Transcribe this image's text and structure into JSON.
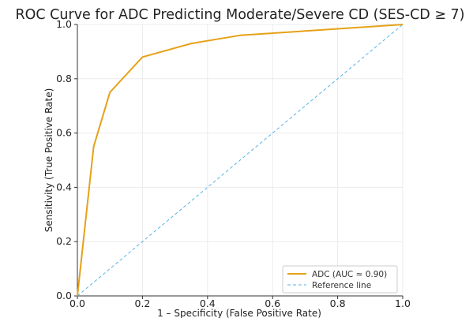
{
  "chart_data": {
    "type": "line",
    "title": "ROC Curve for ADC Predicting Moderate/Severe CD (SES-CD ≥ 7)",
    "xlabel": "1 – Specificity (False Positive Rate)",
    "ylabel": "Sensitivity (True Positive Rate)",
    "xlim": [
      0,
      1
    ],
    "ylim": [
      0,
      1
    ],
    "x_ticks": [
      "0.0",
      "0.2",
      "0.4",
      "0.6",
      "0.8",
      "1.0"
    ],
    "y_ticks": [
      "0.0",
      "0.2",
      "0.4",
      "0.6",
      "0.8",
      "1.0"
    ],
    "grid": true,
    "legend_position": "bottom-right",
    "series": [
      {
        "name": "ADC (AUC ≈ 0.90)",
        "color": "#E6A117",
        "style": "solid",
        "x": [
          0.0,
          0.05,
          0.1,
          0.2,
          0.35,
          0.5,
          1.0
        ],
        "y": [
          0.0,
          0.55,
          0.75,
          0.88,
          0.93,
          0.96,
          1.0
        ]
      },
      {
        "name": "Reference line",
        "color": "#56B4E9",
        "style": "dashed",
        "x": [
          0.0,
          1.0
        ],
        "y": [
          0.0,
          1.0
        ]
      }
    ]
  }
}
